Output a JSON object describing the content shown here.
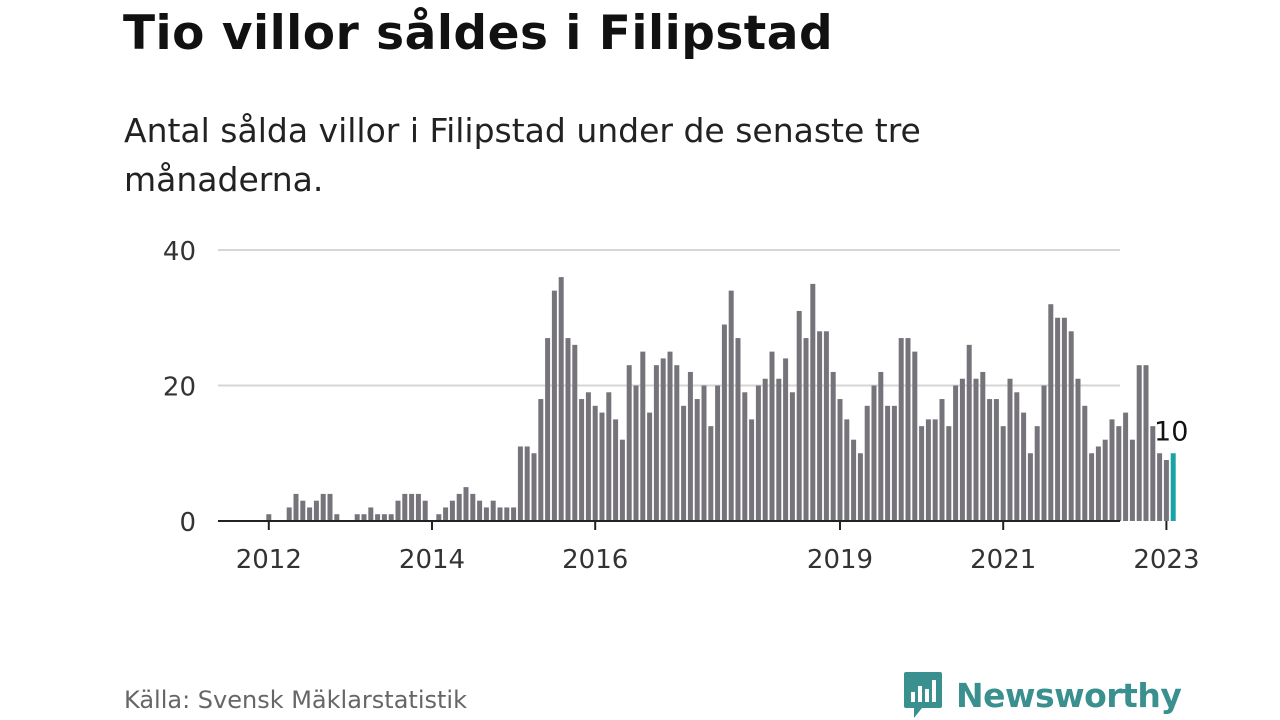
{
  "header": {
    "title": "Tio villor såldes i Filipstad",
    "subtitle": "Antal sålda villor i Filipstad under de senaste tre månaderna."
  },
  "footer": {
    "source": "Källa: Svensk Mäklarstatistik",
    "brand": "Newsworthy"
  },
  "colors": {
    "bar": "#76747a",
    "highlight": "#1aa3a6",
    "grid": "#d6d6d6",
    "axis": "#222222",
    "brand": "#3a8f8f"
  },
  "chart_data": {
    "type": "bar",
    "title": "Tio villor såldes i Filipstad",
    "subtitle": "Antal sålda villor i Filipstad under de senaste tre månaderna.",
    "xlabel": "",
    "ylabel": "",
    "ylim": [
      0,
      40
    ],
    "y_ticks": [
      0,
      20,
      40
    ],
    "grid": true,
    "start_month": "2011-12",
    "x_tick_labels": [
      {
        "label": "2012",
        "month": "2012-01"
      },
      {
        "label": "2014",
        "month": "2014-01"
      },
      {
        "label": "2016",
        "month": "2016-01"
      },
      {
        "label": "2019",
        "month": "2019-01"
      },
      {
        "label": "2021",
        "month": "2021-01"
      },
      {
        "label": "2023",
        "month": "2023-01"
      }
    ],
    "values": [
      0,
      1,
      0,
      0,
      2,
      4,
      3,
      2,
      3,
      4,
      4,
      1,
      0,
      0,
      1,
      1,
      2,
      1,
      1,
      1,
      3,
      4,
      4,
      4,
      3,
      0,
      1,
      2,
      3,
      4,
      5,
      4,
      3,
      2,
      3,
      2,
      2,
      2,
      11,
      11,
      10,
      18,
      27,
      34,
      36,
      27,
      26,
      18,
      19,
      17,
      16,
      19,
      15,
      12,
      23,
      20,
      25,
      16,
      23,
      24,
      25,
      23,
      17,
      22,
      18,
      20,
      14,
      20,
      29,
      34,
      27,
      19,
      15,
      20,
      21,
      25,
      21,
      24,
      19,
      31,
      27,
      35,
      28,
      28,
      22,
      18,
      15,
      12,
      10,
      17,
      20,
      22,
      17,
      17,
      27,
      27,
      25,
      14,
      15,
      15,
      18,
      14,
      20,
      21,
      26,
      21,
      22,
      18,
      18,
      14,
      21,
      19,
      16,
      10,
      14,
      20,
      32,
      30,
      30,
      28,
      21,
      17,
      10,
      11,
      12,
      15,
      14,
      16,
      12,
      23,
      23,
      14,
      10,
      9,
      10
    ],
    "highlight": {
      "value": 10,
      "label": "10"
    }
  }
}
